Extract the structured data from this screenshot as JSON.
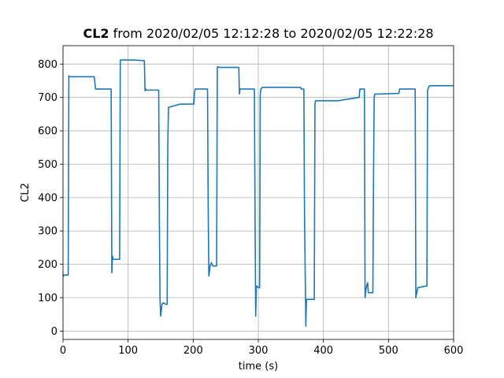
{
  "chart_data": {
    "type": "line",
    "title_bold": "CL2",
    "title_rest": " from 2020/02/05 12:12:28 to 2020/02/05 12:22:28",
    "xlabel": "time (s)",
    "ylabel": "CL2",
    "xlim": [
      0,
      600
    ],
    "ylim": [
      -25,
      855
    ],
    "xticks": [
      0,
      100,
      200,
      300,
      400,
      500,
      600
    ],
    "yticks": [
      0,
      100,
      200,
      300,
      400,
      500,
      600,
      700,
      800
    ],
    "grid": true,
    "color": "#1f77b4",
    "series": [
      {
        "x": [
          0,
          1,
          2,
          8,
          9,
          10,
          12,
          48,
          50,
          72,
          74,
          75,
          76,
          77,
          78,
          85,
          87,
          88,
          110,
          125,
          126,
          127,
          128,
          147,
          148,
          149,
          150,
          151,
          152,
          154,
          158,
          160,
          161,
          162,
          180,
          200,
          201,
          202,
          203,
          220,
          222,
          223,
          224,
          226,
          228,
          230,
          236,
          237,
          238,
          239,
          250,
          270,
          271,
          272,
          273,
          290,
          294,
          295,
          296,
          297,
          298,
          300,
          302,
          303,
          304,
          306,
          340,
          365,
          366,
          368,
          370,
          371,
          373,
          374,
          385,
          386,
          387,
          388,
          390,
          402,
          420,
          422,
          455,
          456,
          458,
          460,
          463,
          464,
          465,
          467,
          468,
          469,
          470,
          476,
          477,
          478,
          479,
          480,
          485,
          516,
          517,
          518,
          540,
          541,
          542,
          544,
          545,
          558,
          559,
          560,
          562,
          564,
          600
        ],
        "y": [
          170,
          165,
          168,
          168,
          765,
          762,
          762,
          762,
          725,
          725,
          725,
          175,
          225,
          215,
          215,
          215,
          215,
          812,
          812,
          810,
          720,
          725,
          722,
          722,
          350,
          100,
          45,
          60,
          80,
          85,
          80,
          80,
          560,
          670,
          680,
          680,
          680,
          715,
          725,
          725,
          725,
          380,
          165,
          195,
          205,
          195,
          195,
          790,
          792,
          790,
          790,
          790,
          710,
          725,
          725,
          725,
          725,
          340,
          45,
          130,
          135,
          130,
          130,
          710,
          725,
          730,
          730,
          730,
          725,
          725,
          725,
          350,
          15,
          95,
          95,
          95,
          680,
          690,
          690,
          690,
          690,
          690,
          700,
          725,
          725,
          725,
          725,
          100,
          120,
          140,
          145,
          115,
          115,
          115,
          470,
          700,
          710,
          710,
          710,
          712,
          725,
          725,
          725,
          725,
          100,
          120,
          130,
          135,
          135,
          720,
          733,
          735,
          735
        ]
      }
    ]
  }
}
